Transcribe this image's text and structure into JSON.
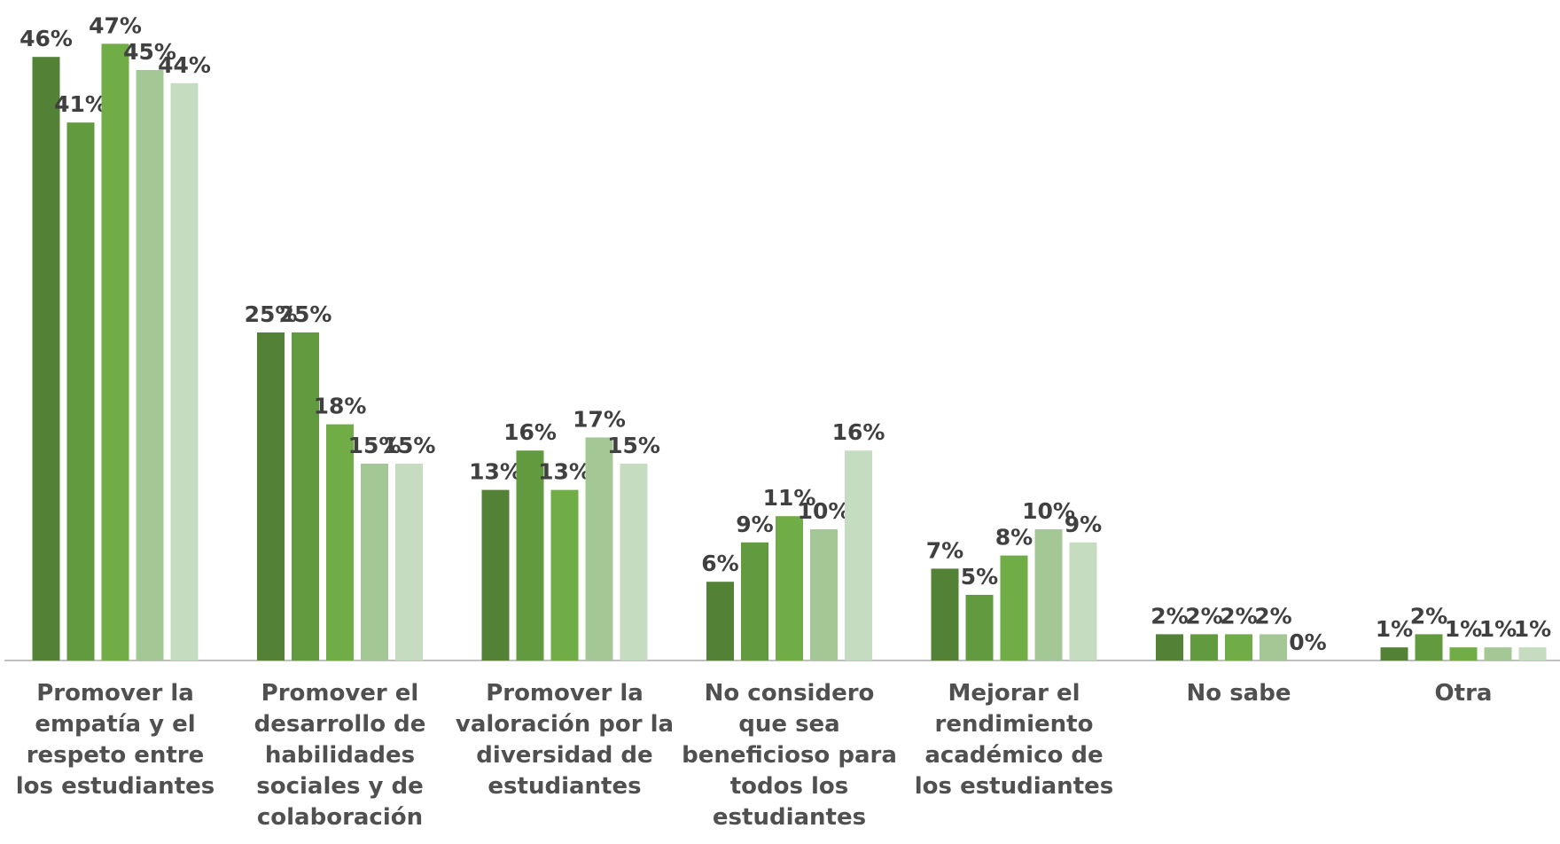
{
  "chart_data": {
    "type": "bar",
    "categories": [
      "Promover la empatía y el respeto entre los estudiantes",
      "Promover el desarrollo de habilidades sociales y de colaboración",
      "Promover la valoración por la diversidad de estudiantes",
      "No considero que sea beneficioso para todos los estudiantes",
      "Mejorar el rendimiento académico de los estudiantes",
      "No sabe",
      "Otra"
    ],
    "series": [
      {
        "color": "#538135",
        "values": [
          46,
          25,
          13,
          6,
          7,
          2,
          1
        ],
        "value_labels": [
          "46%",
          "25%",
          "13%",
          "6%",
          "7%",
          "2%",
          "1%"
        ]
      },
      {
        "color": "#629b3f",
        "values": [
          41,
          25,
          16,
          9,
          5,
          2,
          2
        ],
        "value_labels": [
          "41%",
          "25%",
          "16%",
          "9%",
          "5%",
          "2%",
          "2%"
        ]
      },
      {
        "color": "#70ad47",
        "values": [
          47,
          18,
          13,
          11,
          8,
          2,
          1
        ],
        "value_labels": [
          "47%",
          "18%",
          "13%",
          "11%",
          "8%",
          "2%",
          "1%"
        ]
      },
      {
        "color": "#a4c895",
        "values": [
          45,
          15,
          17,
          10,
          10,
          2,
          1
        ],
        "value_labels": [
          "45%",
          "15%",
          "17%",
          "10%",
          "10%",
          "2%",
          "1%"
        ]
      },
      {
        "color": "#c5dcc0",
        "values": [
          44,
          15,
          15,
          16,
          9,
          0,
          1
        ],
        "value_labels": [
          "44%",
          "15%",
          "15%",
          "16%",
          "9%",
          "0%",
          "1%"
        ]
      }
    ]
  }
}
